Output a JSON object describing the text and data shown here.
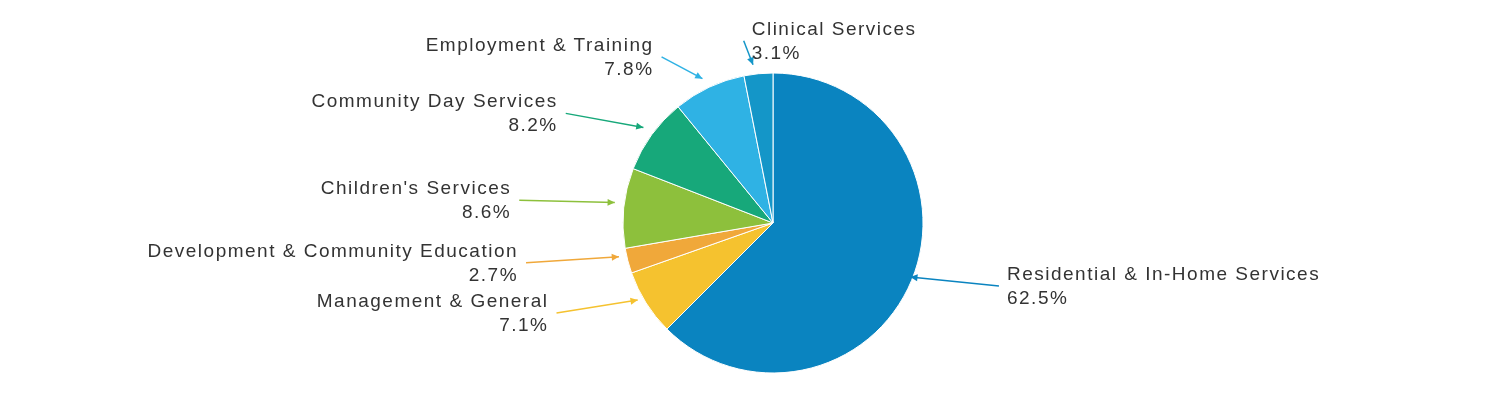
{
  "chart_data": {
    "type": "pie",
    "categories": [
      "Residential & In-Home Services",
      "Management & General",
      "Development & Community Education",
      "Children's Services",
      "Community Day Services",
      "Employment & Training",
      "Clinical Services"
    ],
    "values": [
      62.5,
      7.1,
      2.7,
      8.6,
      8.2,
      7.8,
      3.1
    ],
    "value_labels": [
      "62.5%",
      "7.1%",
      "2.7%",
      "8.6%",
      "8.2%",
      "7.8%",
      "3.1%"
    ],
    "colors": [
      "#0a84c0",
      "#f5c22f",
      "#f0a83a",
      "#8dc03c",
      "#17a87a",
      "#2fb2e4",
      "#1496c8"
    ]
  }
}
